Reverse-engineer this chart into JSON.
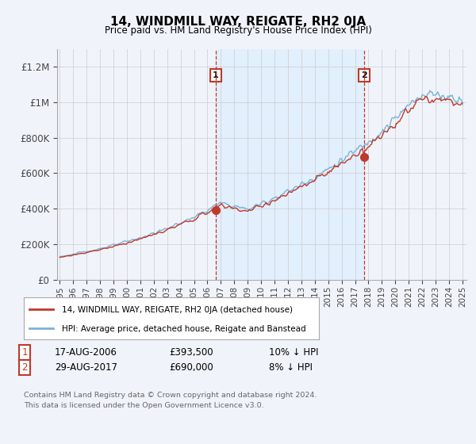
{
  "title": "14, WINDMILL WAY, REIGATE, RH2 0JA",
  "subtitle": "Price paid vs. HM Land Registry's House Price Index (HPI)",
  "ylim": [
    0,
    1300000
  ],
  "yticks": [
    0,
    200000,
    400000,
    600000,
    800000,
    1000000,
    1200000
  ],
  "ytick_labels": [
    "£0",
    "£200K",
    "£400K",
    "£600K",
    "£800K",
    "£1M",
    "£1.2M"
  ],
  "hpi_color": "#7ab3d8",
  "price_color": "#c0392b",
  "shade_color": "#ddeeff",
  "marker1_year": 2006.62,
  "marker1_price": 393500,
  "marker1_label": "1",
  "marker2_year": 2017.65,
  "marker2_price": 690000,
  "marker2_label": "2",
  "legend_line1": "14, WINDMILL WAY, REIGATE, RH2 0JA (detached house)",
  "legend_line2": "HPI: Average price, detached house, Reigate and Banstead",
  "table_row1": [
    "1",
    "17-AUG-2006",
    "£393,500",
    "10% ↓ HPI"
  ],
  "table_row2": [
    "2",
    "29-AUG-2017",
    "£690,000",
    "8% ↓ HPI"
  ],
  "footnote1": "Contains HM Land Registry data © Crown copyright and database right 2024.",
  "footnote2": "This data is licensed under the Open Government Licence v3.0.",
  "background_color": "#f0f4fa",
  "chart_bg": "#e8f0f8"
}
